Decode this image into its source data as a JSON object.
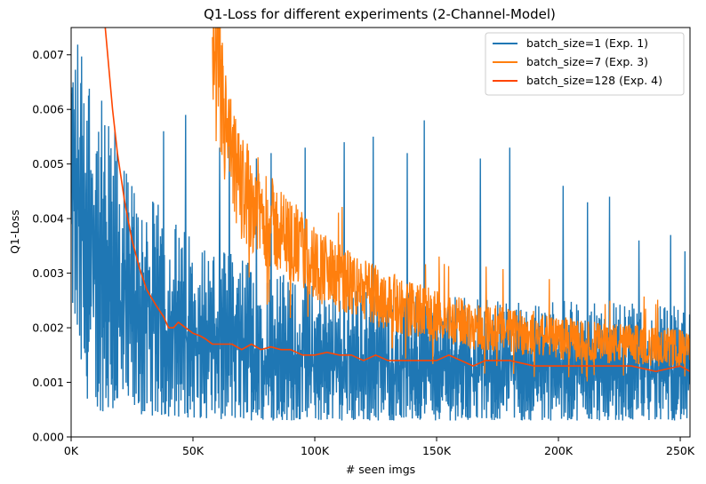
{
  "chart_data": {
    "type": "line",
    "title": "Q1-Loss for different experiments (2-Channel-Model)",
    "xlabel": "# seen imgs",
    "ylabel": "Q1-Loss",
    "xlim": [
      0,
      254000
    ],
    "ylim": [
      0,
      0.0075
    ],
    "x_ticks": [
      0,
      50000,
      100000,
      150000,
      200000,
      250000
    ],
    "x_tick_labels": [
      "0K",
      "50K",
      "100K",
      "150K",
      "200K",
      "250K"
    ],
    "y_ticks": [
      0,
      0.001,
      0.002,
      0.003,
      0.004,
      0.005,
      0.006,
      0.007
    ],
    "y_tick_labels": [
      "0.000",
      "0.001",
      "0.002",
      "0.003",
      "0.004",
      "0.005",
      "0.006",
      "0.007"
    ],
    "grid": false,
    "legend_position": "top-right",
    "series": [
      {
        "name": "batch_size=1 (Exp. 1)",
        "color": "#1f77b4",
        "style": "noisy",
        "x": [
          0,
          5000,
          10000,
          20000,
          30000,
          50000,
          75000,
          100000,
          150000,
          200000,
          254000
        ],
        "upper": [
          0.0075,
          0.0075,
          0.0065,
          0.0052,
          0.0045,
          0.0037,
          0.0032,
          0.0028,
          0.0026,
          0.0025,
          0.0024
        ],
        "lower": [
          0.0025,
          0.0008,
          0.0005,
          0.0004,
          0.0004,
          0.00035,
          0.0003,
          0.0003,
          0.0003,
          0.0003,
          0.0003
        ],
        "spikes": [
          [
            18000,
            0.0056
          ],
          [
            38000,
            0.0056
          ],
          [
            47000,
            0.0059
          ],
          [
            61000,
            0.0053
          ],
          [
            65000,
            0.0057
          ],
          [
            76000,
            0.0051
          ],
          [
            82000,
            0.0052
          ],
          [
            96000,
            0.0053
          ],
          [
            112000,
            0.0054
          ],
          [
            124000,
            0.0055
          ],
          [
            138000,
            0.0052
          ],
          [
            145000,
            0.0058
          ],
          [
            168000,
            0.0051
          ],
          [
            180000,
            0.0053
          ],
          [
            202000,
            0.0046
          ],
          [
            212000,
            0.0043
          ],
          [
            221000,
            0.0044
          ],
          [
            233000,
            0.0036
          ],
          [
            246000,
            0.0037
          ],
          [
            252000,
            0.0034
          ]
        ]
      },
      {
        "name": "batch_size=7 (Exp. 3)",
        "color": "#ff7f0e",
        "style": "noisy",
        "x": [
          58000,
          62000,
          66000,
          70000,
          75000,
          80000,
          90000,
          100000,
          110000,
          120000,
          135000,
          150000,
          170000,
          190000,
          210000,
          230000,
          254000
        ],
        "mean": [
          0.0075,
          0.006,
          0.005,
          0.0046,
          0.0043,
          0.004,
          0.0036,
          0.0032,
          0.0029,
          0.0027,
          0.0024,
          0.0022,
          0.002,
          0.0019,
          0.00175,
          0.0017,
          0.0016
        ]
      },
      {
        "name": "batch_size=128 (Exp. 4)",
        "color": "#ff4500",
        "style": "smooth",
        "x": [
          14000,
          17000,
          19000,
          22000,
          25000,
          28000,
          31000,
          35000,
          38000,
          40000,
          42000,
          44000,
          47000,
          50000,
          53000,
          55000,
          58000,
          62000,
          66000,
          70000,
          74000,
          78000,
          82000,
          86000,
          90000,
          95000,
          100000,
          105000,
          110000,
          115000,
          120000,
          125000,
          130000,
          135000,
          140000,
          145000,
          150000,
          155000,
          160000,
          165000,
          170000,
          175000,
          180000,
          190000,
          200000,
          210000,
          220000,
          230000,
          240000,
          250000,
          254000
        ],
        "y": [
          0.0075,
          0.006,
          0.0052,
          0.0043,
          0.0036,
          0.0031,
          0.0027,
          0.0024,
          0.0022,
          0.002,
          0.002,
          0.0021,
          0.002,
          0.0019,
          0.00185,
          0.0018,
          0.0017,
          0.0017,
          0.0017,
          0.0016,
          0.0017,
          0.0016,
          0.00165,
          0.0016,
          0.0016,
          0.0015,
          0.0015,
          0.00155,
          0.0015,
          0.0015,
          0.0014,
          0.0015,
          0.0014,
          0.0014,
          0.0014,
          0.0014,
          0.0014,
          0.0015,
          0.0014,
          0.0013,
          0.0014,
          0.0014,
          0.0014,
          0.0013,
          0.0013,
          0.0013,
          0.0013,
          0.0013,
          0.0012,
          0.0013,
          0.0012
        ]
      }
    ]
  }
}
